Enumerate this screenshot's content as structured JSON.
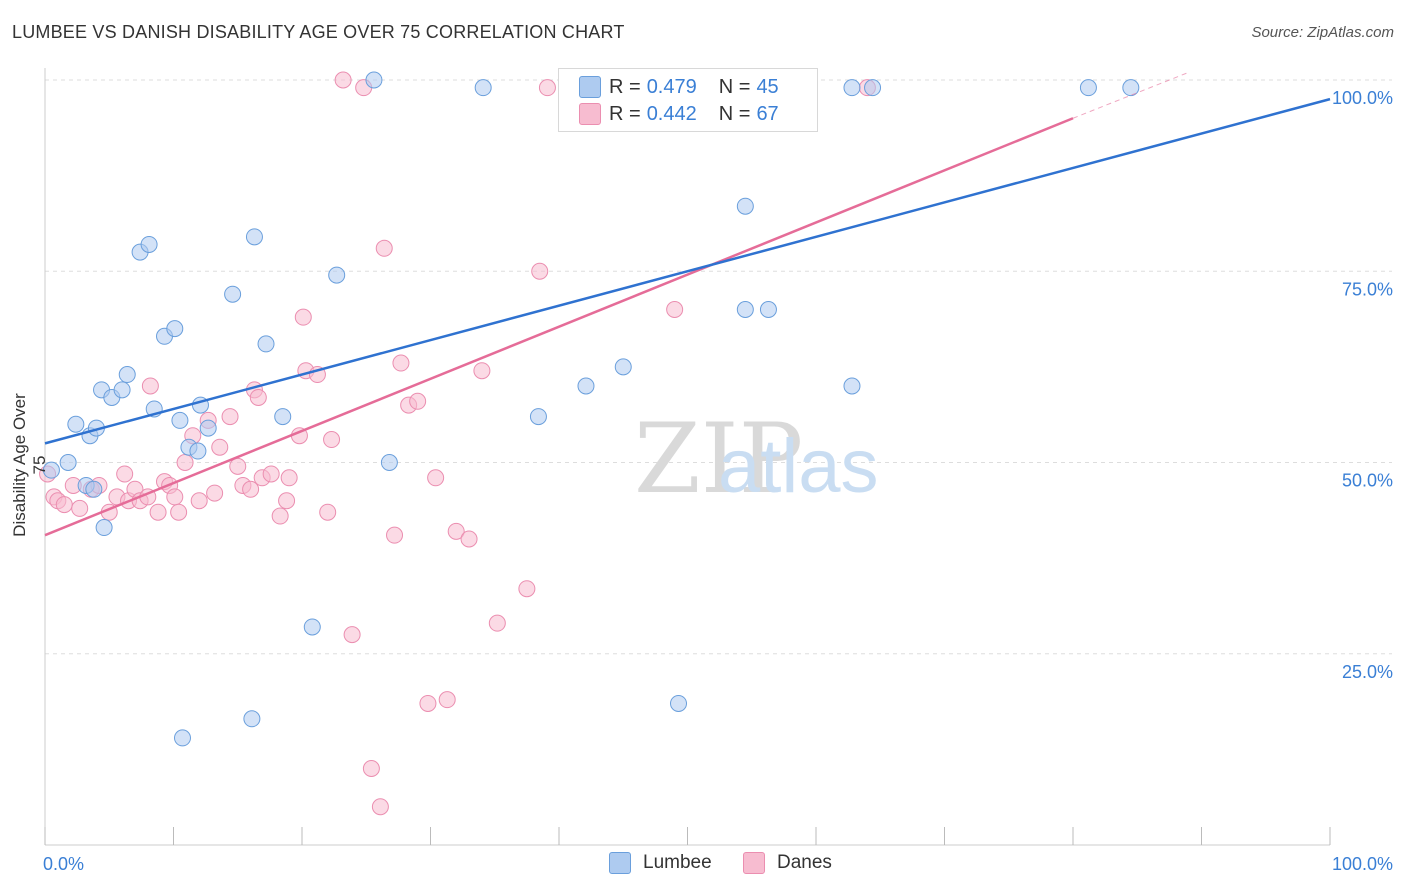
{
  "title": "LUMBEE VS DANISH DISABILITY AGE OVER 75 CORRELATION CHART",
  "source": "Source: ZipAtlas.com",
  "watermark": {
    "zip": "ZIP",
    "atlas": "atlas"
  },
  "legend": {
    "rows": [
      {
        "r_label": "R =",
        "r_value": "0.479",
        "n_label": "N =",
        "n_value": "45"
      },
      {
        "r_label": "R =",
        "r_value": "0.442",
        "n_label": "N =",
        "n_value": "67"
      }
    ]
  },
  "bottom_legend": {
    "lumbee": "Lumbee",
    "danes": "Danes"
  },
  "colors": {
    "lumbee_fill": "#aecbf0",
    "lumbee_stroke": "#6a9fdc",
    "lumbee_line": "#2f72d0",
    "danes_fill": "#f7bcd0",
    "danes_stroke": "#eb8eb0",
    "danes_line": "#e56c98",
    "axis_text": "#3a7fd5"
  },
  "chart_data": {
    "type": "scatter",
    "title": "LUMBEE VS DANISH DISABILITY AGE OVER 75 CORRELATION CHART",
    "xlabel": "",
    "ylabel": "Disability Age Over 75",
    "xlim": [
      0,
      100
    ],
    "ylim": [
      0,
      100
    ],
    "x_tick_labels": [
      "0.0%",
      "100.0%"
    ],
    "y_tick_labels": [
      "100.0%",
      "75.0%",
      "50.0%",
      "25.0%"
    ],
    "y_ticks": [
      100,
      75,
      50,
      25
    ],
    "grid": true,
    "legend_position": "top-center",
    "series": [
      {
        "name": "Lumbee",
        "r": 0.479,
        "n": 45,
        "trend": {
          "x": [
            0,
            100
          ],
          "y": [
            52.5,
            97.5
          ]
        },
        "x": [
          0.5,
          1.8,
          2.4,
          3.5,
          4.0,
          3.2,
          3.8,
          4.6,
          4.4,
          5.2,
          6.0,
          6.4,
          7.4,
          8.1,
          8.5,
          9.3,
          10.1,
          10.5,
          10.7,
          11.2,
          11.9,
          12.1,
          12.7,
          14.6,
          16.1,
          16.3,
          17.2,
          18.5,
          20.8,
          22.7,
          25.6,
          26.8,
          34.1,
          38.4,
          42.1,
          45.0,
          49.3,
          54.5,
          54.5,
          56.3,
          62.8,
          62.8,
          64.4,
          81.2,
          84.5
        ],
        "y": [
          49.0,
          50.0,
          55.0,
          53.5,
          54.5,
          47.0,
          46.5,
          41.5,
          59.5,
          58.5,
          59.5,
          61.5,
          77.5,
          78.5,
          57.0,
          66.5,
          67.5,
          55.5,
          14.0,
          52.0,
          51.5,
          57.5,
          54.5,
          72.0,
          16.5,
          79.5,
          65.5,
          56.0,
          28.5,
          74.5,
          100.0,
          50.0,
          99.0,
          56.0,
          60.0,
          62.5,
          18.5,
          83.5,
          70.0,
          70.0,
          99.0,
          60.0,
          99.0,
          99.0,
          99.0
        ]
      },
      {
        "name": "Danes",
        "r": 0.442,
        "n": 67,
        "trend": {
          "x": [
            0,
            80
          ],
          "y": [
            40.5,
            95.0
          ]
        },
        "trend_dashed": {
          "x": [
            80,
            89
          ],
          "y": [
            95.0,
            101.0
          ]
        },
        "x": [
          0.2,
          0.7,
          1.0,
          1.5,
          2.2,
          2.7,
          3.6,
          4.2,
          5.0,
          5.6,
          6.2,
          6.5,
          7.0,
          7.4,
          8.0,
          8.2,
          8.8,
          9.3,
          9.7,
          10.1,
          10.4,
          10.9,
          11.5,
          12.0,
          12.7,
          13.2,
          13.6,
          14.4,
          15.0,
          15.4,
          16.0,
          16.3,
          16.6,
          16.9,
          17.6,
          18.3,
          18.8,
          19.0,
          19.8,
          20.1,
          20.3,
          21.2,
          22.0,
          22.3,
          23.2,
          23.9,
          24.8,
          25.4,
          26.1,
          26.4,
          27.2,
          27.7,
          28.3,
          29.0,
          29.8,
          30.4,
          31.3,
          32.0,
          33.0,
          34.0,
          35.2,
          37.5,
          38.5,
          39.1,
          49.0,
          52.0,
          64.0
        ],
        "y": [
          48.5,
          45.5,
          45.0,
          44.5,
          47.0,
          44.0,
          46.5,
          47.0,
          43.5,
          45.5,
          48.5,
          45.0,
          46.5,
          45.0,
          45.5,
          60.0,
          43.5,
          47.5,
          47.0,
          45.5,
          43.5,
          50.0,
          53.5,
          45.0,
          55.5,
          46.0,
          52.0,
          56.0,
          49.5,
          47.0,
          46.5,
          59.5,
          58.5,
          48.0,
          48.5,
          43.0,
          45.0,
          48.0,
          53.5,
          69.0,
          62.0,
          61.5,
          43.5,
          53.0,
          100.0,
          27.5,
          99.0,
          10.0,
          5.0,
          78.0,
          40.5,
          63.0,
          57.5,
          58.0,
          18.5,
          48.0,
          19.0,
          41.0,
          40.0,
          62.0,
          29.0,
          33.5,
          75.0,
          99.0,
          70.0,
          99.0,
          99.0
        ]
      }
    ]
  }
}
